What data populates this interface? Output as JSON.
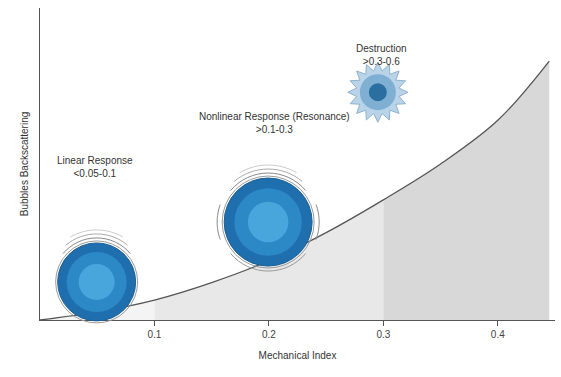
{
  "chart_data": {
    "type": "area",
    "x_label": "Mechanical Index",
    "y_label": "Bubbles Backscattering",
    "x": [
      0,
      0.05,
      0.1,
      0.15,
      0.2,
      0.25,
      0.3,
      0.35,
      0.4,
      0.445
    ],
    "values": [
      0,
      0.026,
      0.064,
      0.12,
      0.19,
      0.28,
      0.385,
      0.5,
      0.64,
      0.83
    ],
    "color": "#555555",
    "xlim": [
      0,
      0.45
    ],
    "xticks": [
      0.1,
      0.2,
      0.3,
      0.4
    ],
    "ylim": [
      0,
      1
    ],
    "tick_labels": "x",
    "grid": false,
    "regions": [
      {
        "x0": 0,
        "x1": 0.1,
        "color": "#f4f4f4"
      },
      {
        "x0": 0.1,
        "x1": 0.3,
        "color": "#e8e8e8"
      },
      {
        "x0": 0.3,
        "x1": 0.445,
        "color": "#d8d8d8"
      }
    ],
    "annotations": [
      {
        "text": "Linear Response",
        "detail": "<0.05-0.1"
      },
      {
        "text": "Nonlinear Response (Resonance)",
        "detail": ">0.1-0.3"
      },
      {
        "text": "Destruction",
        "detail": ">0.3-0.6"
      }
    ]
  }
}
